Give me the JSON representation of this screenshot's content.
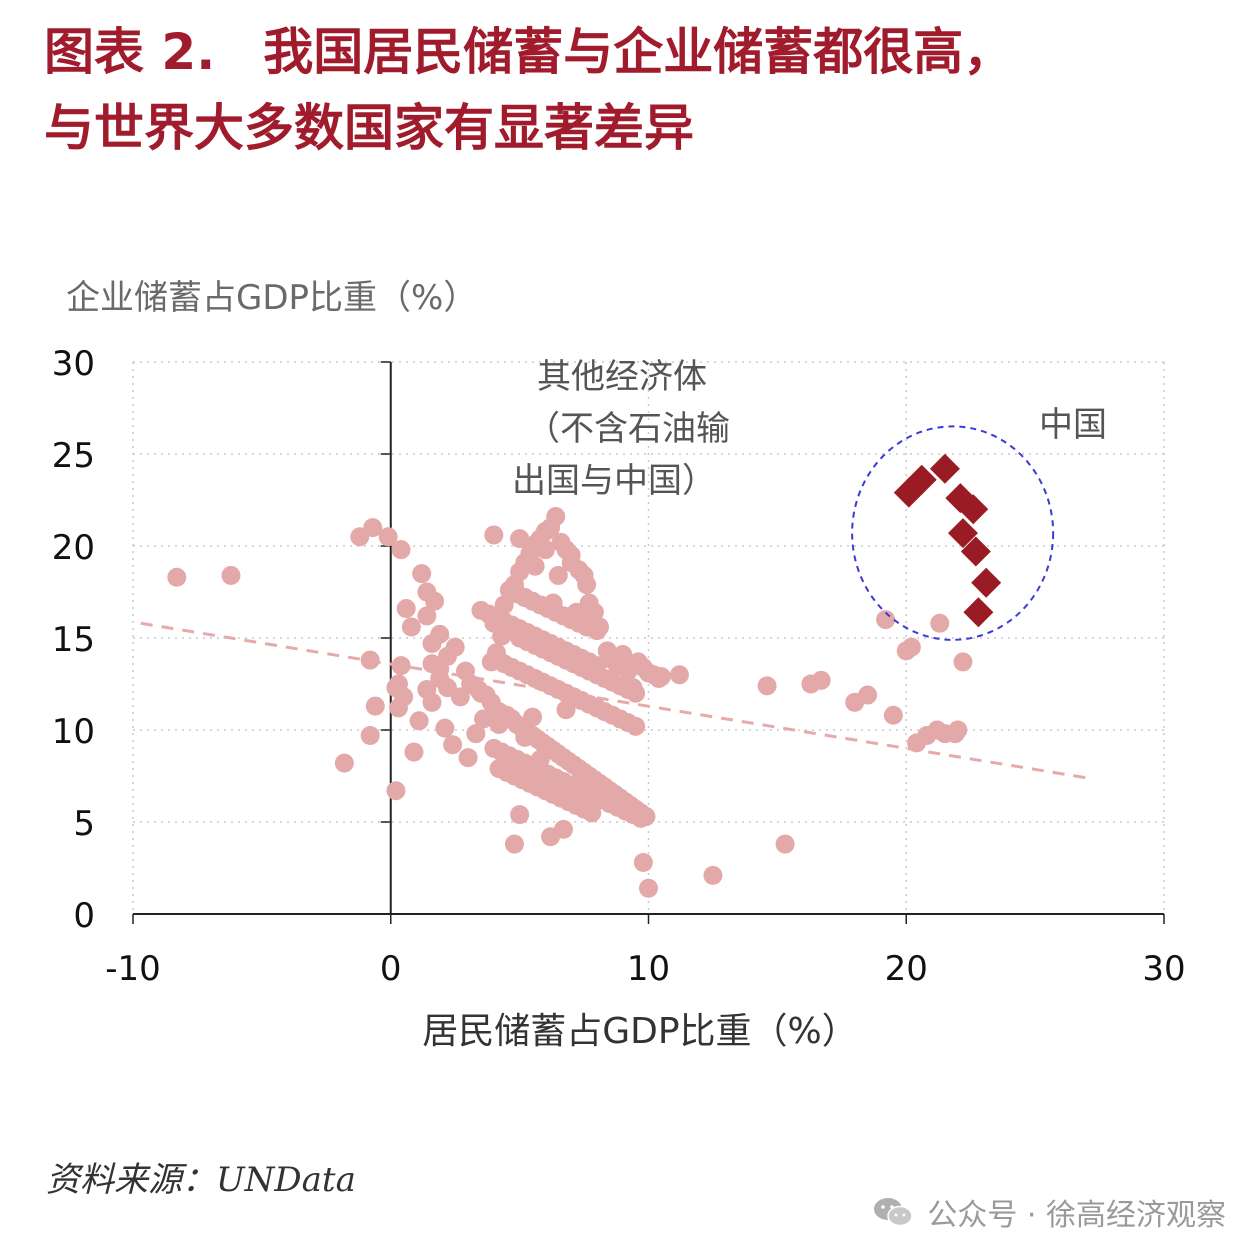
{
  "title": {
    "label": "图表 2.",
    "line1": "我国居民储蓄与企业储蓄都很高，",
    "line2": "与世界大多数国家有显著差异"
  },
  "source": "资料来源：UNData",
  "watermark": "公众号 · 徐高经济观察",
  "colors": {
    "title": "#a01c2c",
    "other_points": "#e3a9a9",
    "china_points": "#9b1b24",
    "trend_line": "#e7aaaa",
    "circle": "#3a3ad6"
  },
  "chart_data": {
    "type": "scatter",
    "xlabel": "居民储蓄占GDP比重（%）",
    "ylabel": "企业储蓄占GDP比重（%）",
    "xlim": [
      -10,
      30
    ],
    "ylim": [
      0,
      30
    ],
    "xticks": [
      "-10",
      "0",
      "10",
      "20",
      "30"
    ],
    "yticks": [
      "0",
      "5",
      "10",
      "15",
      "20",
      "25",
      "30"
    ],
    "grid": true,
    "annotations": {
      "other": [
        "其他经济体",
        "（不含石油输",
        "出国与中国）"
      ],
      "china": "中国"
    },
    "trend_line": {
      "x": [
        -9.7,
        27
      ],
      "y": [
        15.8,
        7.4
      ]
    },
    "china_circle": {
      "cx": 21.8,
      "cy": 20.7,
      "rx": 3.9,
      "ry": 5.8
    },
    "series": [
      {
        "marker": "diamond",
        "x": [
          20.1,
          20.6,
          21.5,
          22.1,
          22.6,
          22.2,
          22.7,
          23.1,
          22.8
        ],
        "y": [
          22.9,
          23.6,
          24.2,
          22.6,
          22.0,
          20.7,
          19.7,
          18.0,
          16.4
        ]
      },
      {
        "marker": "circle",
        "x": [
          -8.3,
          -6.2,
          -1.8,
          -0.8,
          -1.2,
          -0.7,
          0.4,
          -0.1,
          -0.8,
          -0.6,
          0.2,
          0.3,
          0.5,
          0.9,
          1.1,
          1.4,
          1.6,
          1.9,
          1.7,
          1.4,
          1.2,
          0.8,
          0.6,
          0.4,
          0.2,
          0.3,
          1.6,
          1.9,
          2.2,
          2.5,
          2.9,
          2.7,
          2.2,
          1.9,
          1.6,
          1.4,
          2.1,
          2.4,
          3.0,
          3.3,
          3.6,
          3.5,
          3.9,
          4.1,
          4.3,
          4.0,
          4.4,
          4.8,
          5.0,
          5.2,
          5.4,
          5.6,
          5.8,
          6.0,
          6.2,
          6.4,
          6.6,
          6.8,
          7.0,
          7.3,
          7.5,
          7.7,
          7.9,
          8.1,
          8.4,
          8.6,
          8.8,
          9.0,
          9.2,
          9.4,
          9.6,
          9.8,
          10.0,
          10.2,
          10.4,
          10.5,
          11.2,
          3.1,
          3.4,
          3.7,
          3.9,
          4.2,
          4.5,
          4.7,
          4.9,
          5.1,
          5.3,
          5.5,
          5.7,
          5.9,
          6.1,
          6.3,
          6.5,
          6.7,
          6.9,
          7.1,
          7.3,
          7.5,
          7.7,
          7.9,
          8.1,
          8.3,
          8.5,
          8.7,
          8.9,
          9.1,
          9.3,
          9.5,
          9.7,
          9.9,
          4.0,
          4.3,
          4.6,
          4.9,
          5.2,
          5.5,
          5.8,
          6.1,
          6.4,
          6.7,
          7.0,
          7.3,
          7.6,
          7.9,
          8.2,
          8.5,
          8.8,
          9.1,
          9.4,
          9.7,
          4.1,
          4.4,
          4.7,
          5.0,
          5.3,
          5.6,
          5.9,
          6.2,
          6.5,
          6.8,
          7.1,
          7.4,
          7.7,
          8.0,
          8.3,
          8.6,
          8.9,
          9.2,
          9.5,
          5.0,
          5.3,
          5.6,
          5.9,
          6.2,
          6.5,
          6.8,
          7.1,
          7.4,
          7.7,
          8.0,
          8.3,
          8.6,
          8.9,
          9.2,
          9.5,
          3.5,
          3.8,
          4.1,
          4.4,
          4.7,
          5.0,
          5.3,
          5.6,
          5.9,
          6.2,
          6.5,
          6.8,
          7.1,
          7.4,
          7.7,
          8.0,
          4.6,
          4.9,
          5.2,
          5.5,
          5.8,
          6.1,
          6.4,
          6.7,
          7.0,
          7.3,
          7.6,
          4.2,
          4.5,
          4.8,
          5.1,
          5.4,
          5.7,
          6.0,
          6.3,
          6.6,
          6.9,
          7.2,
          7.5,
          7.8,
          4.0,
          5.0,
          6.0,
          7.0,
          5.6,
          6.5,
          7.6,
          5.2,
          6.3,
          7.2,
          7.5,
          8.0,
          4.2,
          5.5,
          6.8,
          5.0,
          4.8,
          6.2,
          6.7,
          5.8,
          5.2,
          9.8,
          10.0,
          12.5,
          15.3,
          14.6,
          16.3,
          16.7,
          18.0,
          18.5,
          19.2,
          19.5,
          20.0,
          20.2,
          20.4,
          20.8,
          21.2,
          21.5,
          21.9,
          22.0,
          22.2,
          21.3
        ],
        "y": [
          18.3,
          18.4,
          8.2,
          13.8,
          20.5,
          21.0,
          19.8,
          20.5,
          9.7,
          11.3,
          6.7,
          12.5,
          11.8,
          8.8,
          10.5,
          12.2,
          13.6,
          15.2,
          17.0,
          17.5,
          18.5,
          15.6,
          16.6,
          13.5,
          12.3,
          11.2,
          11.5,
          12.8,
          14.0,
          14.5,
          13.2,
          11.8,
          12.3,
          13.3,
          14.7,
          16.2,
          10.1,
          9.2,
          8.5,
          9.8,
          10.6,
          12.0,
          13.7,
          14.2,
          15.1,
          15.8,
          16.8,
          17.9,
          18.6,
          19.1,
          19.6,
          20.1,
          20.4,
          20.8,
          21.0,
          21.6,
          20.2,
          19.8,
          19.1,
          18.7,
          18.4,
          16.9,
          16.4,
          15.6,
          14.3,
          13.8,
          13.5,
          14.1,
          13.2,
          12.3,
          13.7,
          13.4,
          13.1,
          13.0,
          12.8,
          12.9,
          13.0,
          12.5,
          12.2,
          11.9,
          11.5,
          11.0,
          10.8,
          10.6,
          10.3,
          10.1,
          9.9,
          9.7,
          9.5,
          9.3,
          9.1,
          8.9,
          8.7,
          8.5,
          8.3,
          8.1,
          7.9,
          7.7,
          7.5,
          7.3,
          7.1,
          6.9,
          6.7,
          6.5,
          6.3,
          6.1,
          5.9,
          5.7,
          5.5,
          5.3,
          9.0,
          8.8,
          8.6,
          8.4,
          8.2,
          8.0,
          7.8,
          7.6,
          7.4,
          7.2,
          7.0,
          6.8,
          6.6,
          6.4,
          6.2,
          6.0,
          5.8,
          5.6,
          5.4,
          5.2,
          13.8,
          13.6,
          13.4,
          13.2,
          13.0,
          12.8,
          12.6,
          12.4,
          12.2,
          12.0,
          11.8,
          11.6,
          11.4,
          11.2,
          11.0,
          10.8,
          10.6,
          10.4,
          10.2,
          15.0,
          14.8,
          14.6,
          14.4,
          14.2,
          14.0,
          13.8,
          13.6,
          13.4,
          13.2,
          13.0,
          12.8,
          12.6,
          12.4,
          12.2,
          12.0,
          16.5,
          16.3,
          16.1,
          15.9,
          15.7,
          15.5,
          15.3,
          15.1,
          14.9,
          14.7,
          14.5,
          14.3,
          14.1,
          13.9,
          13.7,
          13.5,
          17.6,
          17.4,
          17.2,
          17.0,
          16.8,
          16.6,
          16.4,
          16.2,
          16.0,
          15.8,
          15.6,
          7.9,
          7.7,
          7.5,
          7.3,
          7.1,
          6.9,
          6.7,
          6.5,
          6.3,
          6.1,
          5.9,
          5.7,
          5.5,
          20.6,
          20.4,
          19.8,
          19.5,
          18.9,
          18.4,
          17.9,
          17.2,
          16.9,
          16.4,
          15.9,
          15.4,
          10.3,
          10.7,
          11.1,
          5.4,
          3.8,
          4.2,
          4.6,
          8.4,
          9.6,
          2.8,
          1.4,
          2.1,
          3.8,
          12.4,
          12.5,
          12.7,
          11.5,
          11.9,
          16.0,
          10.8,
          14.3,
          14.5,
          9.3,
          9.7,
          10.0,
          9.8,
          9.8,
          10.0,
          13.7,
          15.8
        ]
      }
    ]
  }
}
